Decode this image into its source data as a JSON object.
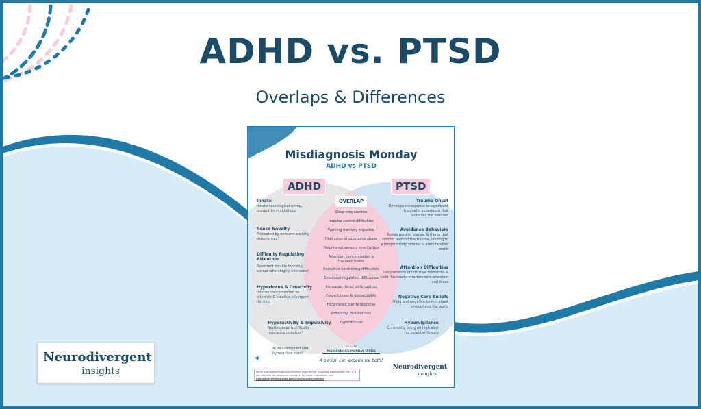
{
  "header": {
    "title": "ADHD vs. PTSD",
    "subtitle": "Overlaps & Differences"
  },
  "colors": {
    "frame": "#1f7aa8",
    "wave_light": "#d8ecf8",
    "wave_band": "#1f7aa8",
    "title_text": "#1b4b66",
    "pink": "#f6cdd8",
    "adhd_circle": "#e4e6e8",
    "ptsd_circle": "#cfe3f3"
  },
  "poster": {
    "title": "Misdiagnosis Monday",
    "subtitle": "ADHD vs PTSD",
    "adhd_label": "ADHD",
    "ptsd_label": "PTSD",
    "overlap_label": "OVERLAP",
    "overlap_items": [
      "Sleep irregularities",
      "Impulse control difficulties",
      "Working memory impacted",
      "High rates of substance abuse",
      "Heightened sensory sensitivities",
      "Attention, concentration & memory issues",
      "Executive functioning difficulties",
      "Emotional regulation difficulties",
      "Increased risk of victimization",
      "Forgetfulness & distractibility",
      "Heightened startle response",
      "Irritability, restlessness",
      "Hyperarousal"
    ],
    "adhd_items": [
      {
        "head": "Innate",
        "desc": "Innate neurological wiring, present from childhood"
      },
      {
        "head": "Seeks Novelty",
        "desc": "Motivated by new and exciting experiences*"
      },
      {
        "head": "Difficulty Regulating Attention",
        "desc": "Persistent trouble focusing, except when highly interested"
      },
      {
        "head": "Hyperfocus & Creativity",
        "desc": "Intense concentration on interests & creative, divergent thinking"
      },
      {
        "head": "Hyperactivity & Impulsivity",
        "desc": "Restlessness & difficulty regulating impulses*"
      }
    ],
    "ptsd_items": [
      {
        "head": "Trauma Onset",
        "desc": "Develops in response to significant traumatic experience that underlies the disorder"
      },
      {
        "head": "Avoidance Behaviors",
        "desc": "Avoids people, places, & things that remind them of the trauma, leading to a progressively smaller & more familiar world"
      },
      {
        "head": "Attention Difficulties",
        "desc": "The presence of intrusive memories & vivid flashbacks interfere with attention and focus"
      },
      {
        "head": "Negative Core Beliefs",
        "desc": "Rigid and negative beliefs about oneself and the world"
      },
      {
        "head": "Hypervigilance",
        "desc": "Constantly being on high alert for potential threats"
      }
    ],
    "footnote": "ADHD combined and hyperactive type*",
    "series_label": "MISDIAGNOSIS MONDAY SERIES",
    "series_top": "DR. NEFF",
    "both_note": "A person can experience both!",
    "disclaimer": "While this diagram captures common experiences, individual experiences vary. It is not intended for diagnostic purposes. For more information, visit",
    "disclaimer_link": "neurodivergentinsights.com/misdiagnosis-monday",
    "brand_top": "Neurodivergent",
    "brand_bottom": "insights"
  },
  "brand": {
    "line1": "Neurodivergent",
    "line2": "insights"
  }
}
